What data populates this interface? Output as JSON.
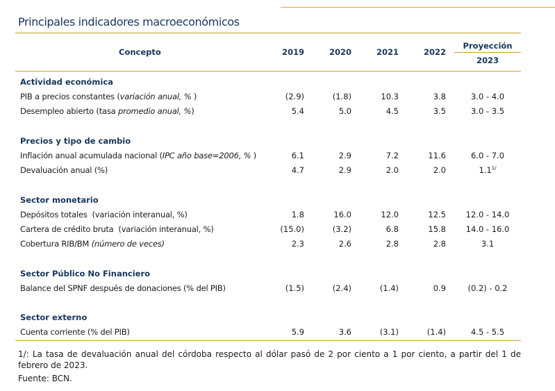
{
  "title": "Principales indicadores macroeconómicos",
  "header": {
    "concepto": "Concepto",
    "years": [
      "2019",
      "2020",
      "2021",
      "2022"
    ],
    "proyeccion": "Proyección",
    "proj_year": "2023"
  },
  "sections": {
    "actividad": {
      "title": "Actividad económica",
      "pib": {
        "label_pre": "PIB a precios constantes (",
        "label_it": "variación anual, %",
        "label_post": " )",
        "values": [
          "(2.9)",
          "(1.8)",
          "10.3",
          "3.8"
        ],
        "proj": "3.0 - 4.0"
      },
      "desempleo": {
        "label_pre": "Desempleo abierto (tasa ",
        "label_it": "promedio anual, %",
        "label_post": ")",
        "values": [
          "5.4",
          "5.0",
          "4.5",
          "3.5"
        ],
        "proj": "3.0 - 3.5"
      }
    },
    "precios": {
      "title": "Precios y tipo de cambio",
      "inflacion": {
        "label_pre": "Inflación anual acumulada nacional (",
        "label_it": "IPC año base=2006, %",
        "label_post": " )",
        "values": [
          "6.1",
          "2.9",
          "7.2",
          "11.6"
        ],
        "proj": "6.0 - 7.0"
      },
      "devaluacion": {
        "label": "Devaluación anual (%)",
        "values": [
          "4.7",
          "2.9",
          "2.0",
          "2.0"
        ],
        "proj": "1.1",
        "proj_note": "1/"
      }
    },
    "monetario": {
      "title": "Sector monetario",
      "depositos": {
        "label": "Depósitos totales  (variación interanual, %)",
        "values": [
          "1.8",
          "16.0",
          "12.0",
          "12.5"
        ],
        "proj": "12.0 - 14.0"
      },
      "cartera": {
        "label": "Cartera de crédito bruta  (variación interanual, %)",
        "values": [
          "(15.0)",
          "(3.2)",
          "6.8",
          "15.8"
        ],
        "proj": "14.0 - 16.0"
      },
      "cobertura": {
        "label_pre": "Cobertura RIB/BM ",
        "label_it": "(número de veces)",
        "values": [
          "2.3",
          "2.6",
          "2.8",
          "2.8"
        ],
        "proj": "3.1"
      }
    },
    "spnf": {
      "title": "Sector Público No Financiero",
      "balance": {
        "label": "Balance del SPNF después de donaciones (% del PIB)",
        "values": [
          "(1.5)",
          "(2.4)",
          "(1.4)",
          "0.9"
        ],
        "proj": "(0.2) - 0.2"
      }
    },
    "externo": {
      "title": "Sector externo",
      "cuenta": {
        "label": "Cuenta corriente (% del PIB)",
        "values": [
          "5.9",
          "3.6",
          "(3.1)",
          "(1.4)"
        ],
        "proj": "4.5 - 5.5"
      }
    }
  },
  "footnote": "1/: La tasa de devaluación anual del córdoba respecto al dólar pasó de 2 por ciento a 1 por ciento, a partir del 1 de febrero de 2023.",
  "source": "Fuente: BCN."
}
